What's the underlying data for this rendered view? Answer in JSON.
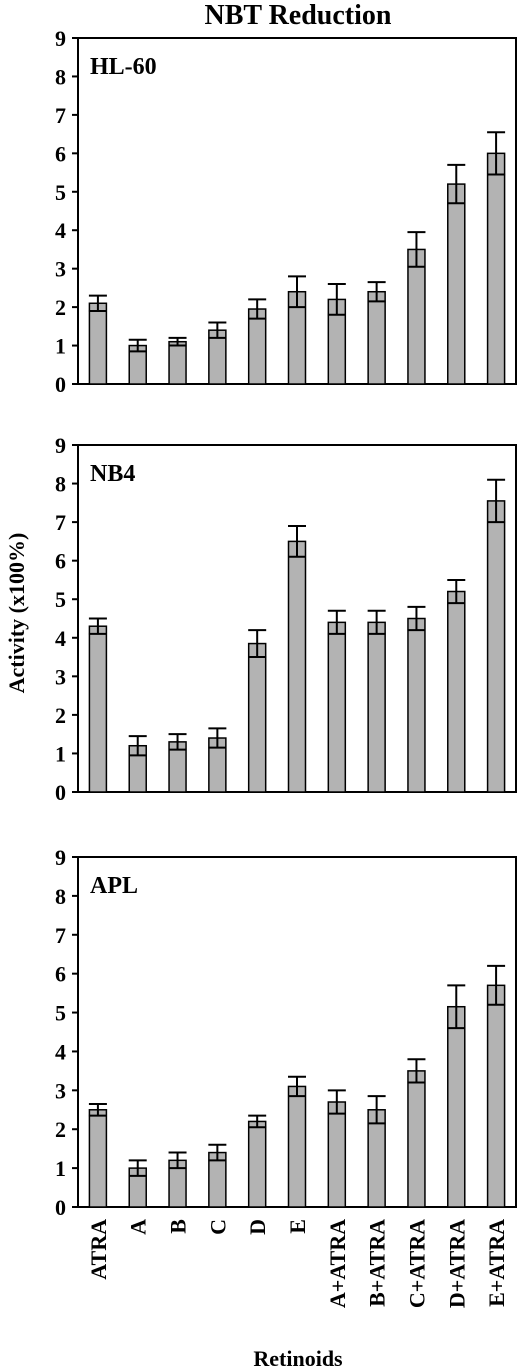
{
  "chart_data": {
    "type": "bar",
    "title": "NBT Reduction",
    "xlabel": "Retinoids",
    "ylabel": "Activity (x100%)",
    "categories": [
      "ATRA",
      "A",
      "B",
      "C",
      "D",
      "E",
      "A+ATRA",
      "B+ATRA",
      "C+ATRA",
      "D+ATRA",
      "E+ATRA"
    ],
    "ylim": [
      0,
      9
    ],
    "yticks": [
      0,
      1,
      2,
      3,
      4,
      5,
      6,
      7,
      8,
      9
    ],
    "grid": false,
    "colors": {
      "bar": "#b3b3b3",
      "stroke": "#000000"
    },
    "panels": [
      {
        "label": "HL-60",
        "values": [
          2.1,
          1.0,
          1.1,
          1.4,
          1.95,
          2.4,
          2.2,
          2.4,
          3.5,
          5.2,
          6.0
        ],
        "errors": [
          0.2,
          0.15,
          0.1,
          0.2,
          0.25,
          0.4,
          0.4,
          0.25,
          0.45,
          0.5,
          0.55
        ]
      },
      {
        "label": "NB4",
        "values": [
          4.3,
          1.2,
          1.3,
          1.4,
          3.85,
          6.5,
          4.4,
          4.4,
          4.5,
          5.2,
          7.55
        ],
        "errors": [
          0.2,
          0.25,
          0.2,
          0.25,
          0.35,
          0.4,
          0.3,
          0.3,
          0.3,
          0.3,
          0.55
        ]
      },
      {
        "label": "APL",
        "values": [
          2.5,
          1.0,
          1.2,
          1.4,
          2.2,
          3.1,
          2.7,
          2.5,
          3.5,
          5.15,
          5.7
        ],
        "errors": [
          0.15,
          0.2,
          0.2,
          0.2,
          0.15,
          0.25,
          0.3,
          0.35,
          0.3,
          0.55,
          0.5
        ]
      }
    ]
  }
}
